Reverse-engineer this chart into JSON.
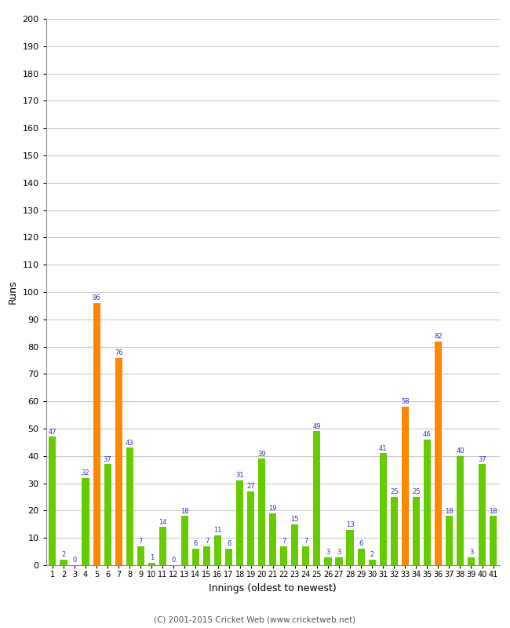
{
  "xlabel": "Innings (oldest to newest)",
  "ylabel": "Runs",
  "footer": "(C) 2001-2015 Cricket Web (www.cricketweb.net)",
  "ylim": [
    0,
    200
  ],
  "yticks": [
    0,
    10,
    20,
    30,
    40,
    50,
    60,
    70,
    80,
    90,
    100,
    110,
    120,
    130,
    140,
    150,
    160,
    170,
    180,
    190,
    200
  ],
  "innings": [
    1,
    2,
    3,
    4,
    5,
    6,
    7,
    8,
    9,
    10,
    11,
    12,
    13,
    14,
    15,
    16,
    17,
    18,
    19,
    20,
    21,
    22,
    23,
    24,
    25,
    26,
    27,
    28,
    29,
    30,
    31,
    32,
    33,
    34,
    35,
    36,
    37,
    38,
    39,
    40,
    41
  ],
  "values": [
    47,
    2,
    0,
    32,
    96,
    37,
    76,
    43,
    7,
    1,
    14,
    0,
    18,
    6,
    7,
    11,
    6,
    31,
    27,
    39,
    19,
    7,
    15,
    7,
    49,
    3,
    3,
    13,
    6,
    2,
    41,
    25,
    58,
    25,
    46,
    82,
    18,
    40,
    3,
    37,
    18
  ],
  "colors": [
    "#66cc00",
    "#66cc00",
    "#66cc00",
    "#66cc00",
    "#ff8800",
    "#66cc00",
    "#ff8800",
    "#66cc00",
    "#66cc00",
    "#66cc00",
    "#66cc00",
    "#66cc00",
    "#66cc00",
    "#66cc00",
    "#66cc00",
    "#66cc00",
    "#66cc00",
    "#66cc00",
    "#66cc00",
    "#66cc00",
    "#66cc00",
    "#66cc00",
    "#66cc00",
    "#66cc00",
    "#66cc00",
    "#66cc00",
    "#66cc00",
    "#66cc00",
    "#66cc00",
    "#66cc00",
    "#66cc00",
    "#66cc00",
    "#ff8800",
    "#66cc00",
    "#66cc00",
    "#ff8800",
    "#66cc00",
    "#66cc00",
    "#66cc00",
    "#66cc00",
    "#66cc00"
  ],
  "label_color": "#3333cc",
  "bg_color": "#ffffff",
  "grid_color": "#cccccc",
  "bar_width": 0.65
}
